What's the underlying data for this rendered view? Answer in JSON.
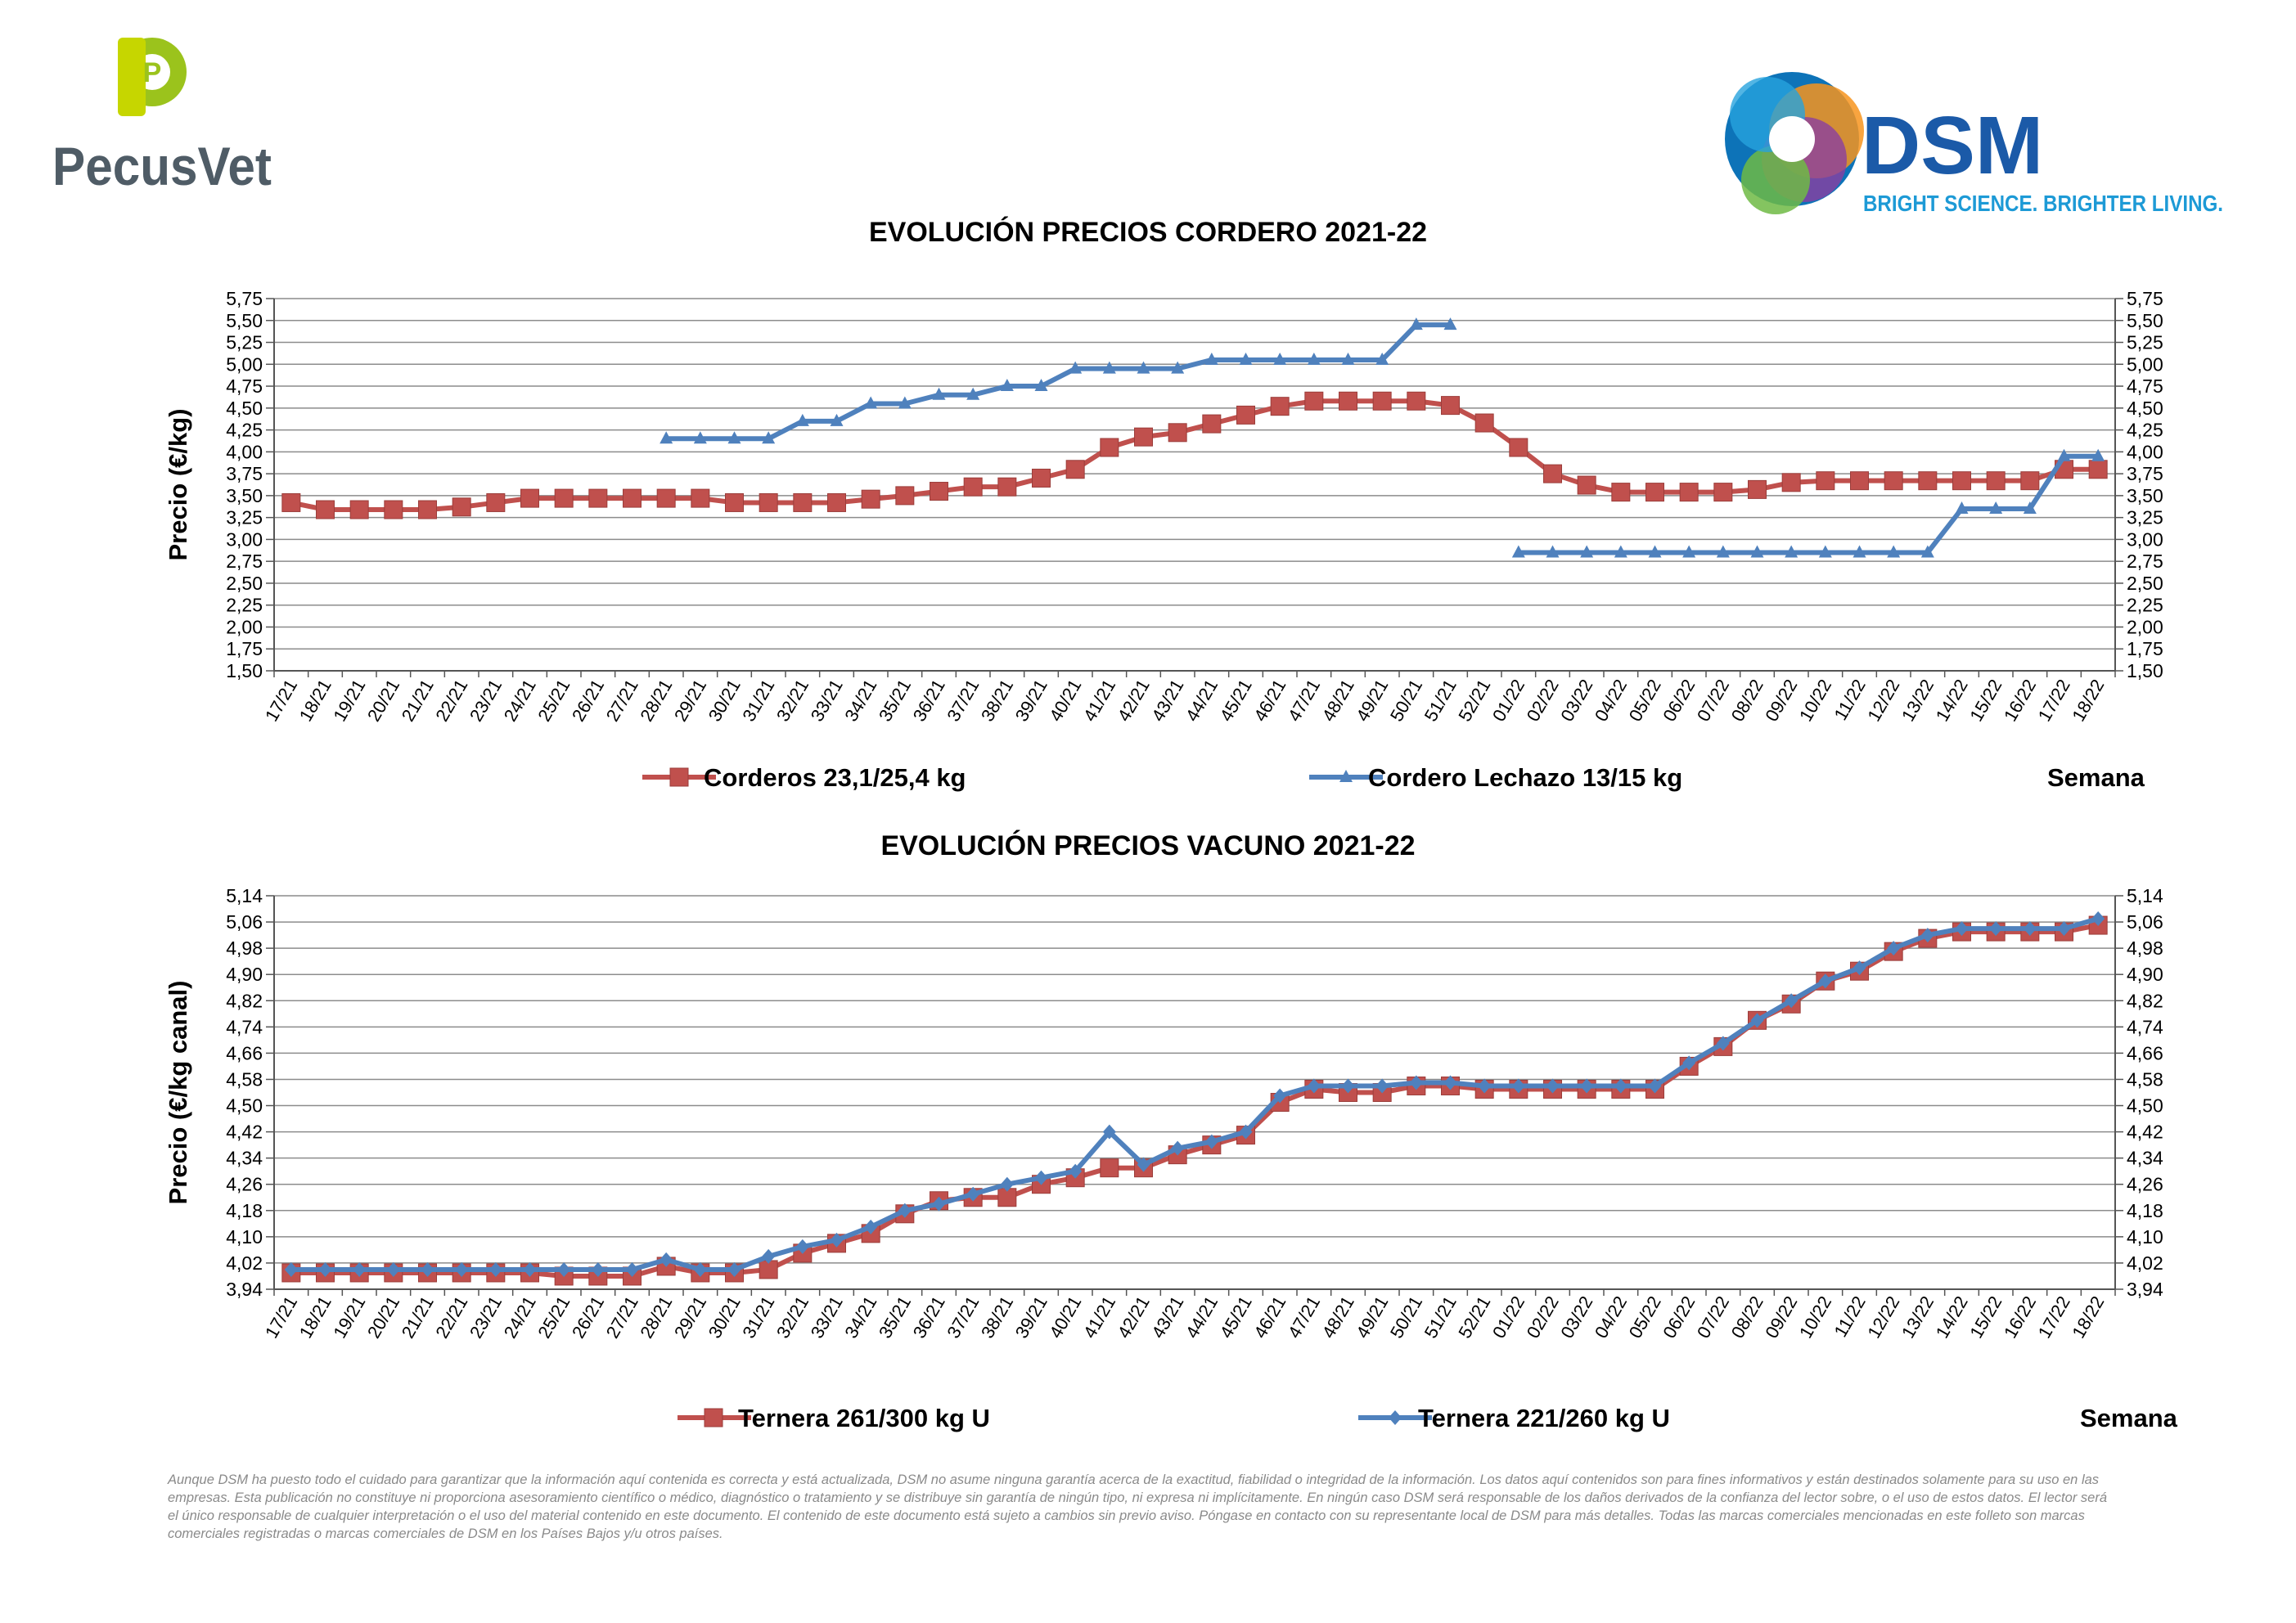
{
  "logos": {
    "pecusvet": {
      "text": "PecusVet",
      "letter": "P"
    },
    "dsm": {
      "name": "DSM",
      "tagline": "BRIGHT SCIENCE. BRIGHTER LIVING."
    }
  },
  "chart_data": [
    {
      "type": "line",
      "title": "EVOLUCIÓN PRECIOS CORDERO 2021-22",
      "ylabel": "Precio (€/kg)",
      "xlabel": "Semana",
      "ylim": [
        1.5,
        5.75
      ],
      "yticks": [
        "1,50",
        "1,75",
        "2,00",
        "2,25",
        "2,50",
        "2,75",
        "3,00",
        "3,25",
        "3,50",
        "3,75",
        "4,00",
        "4,25",
        "4,50",
        "4,75",
        "5,00",
        "5,25",
        "5,50",
        "5,75"
      ],
      "secondary_y_axis": true,
      "grid": true,
      "legend_position": "bottom",
      "categories": [
        "17/21",
        "18/21",
        "19/21",
        "20/21",
        "21/21",
        "22/21",
        "23/21",
        "24/21",
        "25/21",
        "26/21",
        "27/21",
        "28/21",
        "29/21",
        "30/21",
        "31/21",
        "32/21",
        "33/21",
        "34/21",
        "35/21",
        "36/21",
        "37/21",
        "38/21",
        "39/21",
        "40/21",
        "41/21",
        "42/21",
        "43/21",
        "44/21",
        "45/21",
        "46/21",
        "47/21",
        "48/21",
        "49/21",
        "50/21",
        "51/21",
        "52/21",
        "01/22",
        "02/22",
        "03/22",
        "04/22",
        "05/22",
        "06/22",
        "07/22",
        "08/22",
        "09/22",
        "10/22",
        "11/22",
        "12/22",
        "13/22",
        "14/22",
        "15/22",
        "16/22",
        "17/22",
        "18/22"
      ],
      "series": [
        {
          "name": "Corderos 23,1/25,4 kg",
          "color": "#c0504d",
          "marker": "square",
          "values": [
            3.42,
            3.34,
            3.34,
            3.34,
            3.34,
            3.37,
            3.42,
            3.47,
            3.47,
            3.47,
            3.47,
            3.47,
            3.47,
            3.42,
            3.42,
            3.42,
            3.42,
            3.46,
            3.5,
            3.55,
            3.6,
            3.6,
            3.7,
            3.8,
            4.05,
            4.17,
            4.22,
            4.32,
            4.42,
            4.52,
            4.58,
            4.58,
            4.58,
            4.58,
            4.53,
            4.33,
            4.05,
            3.75,
            3.62,
            3.54,
            3.54,
            3.54,
            3.54,
            3.57,
            3.65,
            3.67,
            3.67,
            3.67,
            3.67,
            3.67,
            3.67,
            3.67,
            3.8,
            3.8
          ]
        },
        {
          "name": "Cordero Lechazo 13/15 kg",
          "color": "#4f81bd",
          "marker": "triangle",
          "values": [
            null,
            null,
            null,
            null,
            null,
            null,
            null,
            null,
            null,
            null,
            null,
            4.15,
            4.15,
            4.15,
            4.15,
            4.35,
            4.35,
            4.55,
            4.55,
            4.65,
            4.65,
            4.75,
            4.75,
            4.95,
            4.95,
            4.95,
            4.95,
            5.05,
            5.05,
            5.05,
            5.05,
            5.05,
            5.05,
            5.45,
            5.45,
            null,
            2.85,
            2.85,
            2.85,
            2.85,
            2.85,
            2.85,
            2.85,
            2.85,
            2.85,
            2.85,
            2.85,
            2.85,
            2.85,
            3.35,
            3.35,
            3.35,
            3.95,
            3.95
          ]
        }
      ]
    },
    {
      "type": "line",
      "title": "EVOLUCIÓN PRECIOS VACUNO 2021-22",
      "ylabel": "Precio (€/kg canal)",
      "xlabel": "Semana",
      "ylim": [
        3.94,
        5.14
      ],
      "yticks": [
        "3,94",
        "4,02",
        "4,10",
        "4,18",
        "4,26",
        "4,34",
        "4,42",
        "4,50",
        "4,58",
        "4,66",
        "4,74",
        "4,82",
        "4,90",
        "4,98",
        "5,06",
        "5,14"
      ],
      "secondary_y_axis": true,
      "grid": true,
      "legend_position": "bottom",
      "categories": [
        "17/21",
        "18/21",
        "19/21",
        "20/21",
        "21/21",
        "22/21",
        "23/21",
        "24/21",
        "25/21",
        "26/21",
        "27/21",
        "28/21",
        "29/21",
        "30/21",
        "31/21",
        "32/21",
        "33/21",
        "34/21",
        "35/21",
        "36/21",
        "37/21",
        "38/21",
        "39/21",
        "40/21",
        "41/21",
        "42/21",
        "43/21",
        "44/21",
        "45/21",
        "46/21",
        "47/21",
        "48/21",
        "49/21",
        "50/21",
        "51/21",
        "52/21",
        "01/22",
        "02/22",
        "03/22",
        "04/22",
        "05/22",
        "06/22",
        "07/22",
        "08/22",
        "09/22",
        "10/22",
        "11/22",
        "12/22",
        "13/22",
        "14/22",
        "15/22",
        "16/22",
        "17/22",
        "18/22"
      ],
      "series": [
        {
          "name": "Ternera 261/300 kg U",
          "color": "#c0504d",
          "marker": "square",
          "values": [
            3.99,
            3.99,
            3.99,
            3.99,
            3.99,
            3.99,
            3.99,
            3.99,
            3.98,
            3.98,
            3.98,
            4.01,
            3.99,
            3.99,
            4.0,
            4.05,
            4.08,
            4.11,
            4.17,
            4.21,
            4.22,
            4.22,
            4.26,
            4.28,
            4.31,
            4.31,
            4.35,
            4.38,
            4.41,
            4.51,
            4.55,
            4.54,
            4.54,
            4.56,
            4.56,
            4.55,
            4.55,
            4.55,
            4.55,
            4.55,
            4.55,
            4.62,
            4.68,
            4.76,
            4.81,
            4.88,
            4.91,
            4.97,
            5.01,
            5.03,
            5.03,
            5.03,
            5.03,
            5.05
          ]
        },
        {
          "name": "Ternera 221/260 kg U",
          "color": "#4f81bd",
          "marker": "diamond",
          "values": [
            4.0,
            4.0,
            4.0,
            4.0,
            4.0,
            4.0,
            4.0,
            4.0,
            4.0,
            4.0,
            4.0,
            4.03,
            4.0,
            4.0,
            4.04,
            4.07,
            4.09,
            4.13,
            4.18,
            4.2,
            4.23,
            4.26,
            4.28,
            4.3,
            4.42,
            4.32,
            4.37,
            4.39,
            4.42,
            4.53,
            4.56,
            4.56,
            4.56,
            4.57,
            4.57,
            4.56,
            4.56,
            4.56,
            4.56,
            4.56,
            4.56,
            4.63,
            4.69,
            4.76,
            4.82,
            4.88,
            4.92,
            4.98,
            5.02,
            5.04,
            5.04,
            5.04,
            5.04,
            5.07
          ]
        }
      ]
    }
  ],
  "disclaimer": "Aunque DSM ha puesto todo el cuidado para garantizar que la información aquí contenida es correcta y está actualizada, DSM no asume ninguna garantía acerca de la exactitud, fiabilidad o integridad de la información. Los datos aquí contenidos son para fines informativos y están destinados solamente para su uso en las empresas. Esta publicación no constituye ni proporciona asesoramiento científico o médico, diagnóstico o tratamiento y se distribuye sin garantía de ningún tipo, ni expresa ni implícitamente. En ningún caso DSM será responsable de los daños derivados de la confianza del lector sobre, o el uso de estos datos. El lector será el único responsable de cualquier interpretación o el uso del material contenido en este documento. El contenido de este documento está sujeto a cambios sin previo aviso. Póngase en contacto con su representante local de DSM para más detalles. Todas las marcas comerciales mencionadas en este folleto son marcas comerciales registradas o marcas comerciales de DSM en los Países Bajos y/u otros países."
}
